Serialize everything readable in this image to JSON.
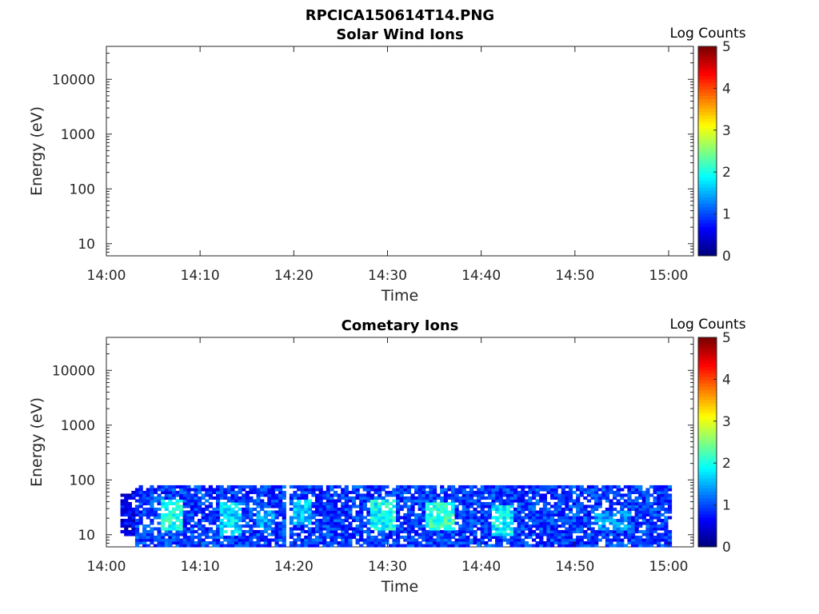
{
  "figure": {
    "title": "RPCICA150614T14.PNG"
  },
  "chart_data": [
    {
      "type": "heatmap",
      "title": "Solar Wind Ions",
      "xlabel": "Time",
      "ylabel": "Energy (eV)",
      "x_ticks": [
        "14:00",
        "14:10",
        "14:20",
        "14:30",
        "14:40",
        "14:50",
        "15:00"
      ],
      "x_range_minutes": [
        0,
        62
      ],
      "y_scale": "log",
      "y_ticks": [
        10,
        100,
        1000,
        10000
      ],
      "y_range": [
        6,
        40000
      ],
      "colorbar": {
        "label": "Log Counts",
        "ticks": [
          0,
          1,
          2,
          3,
          4,
          5
        ],
        "range": [
          0,
          5
        ],
        "colormap": "jet"
      },
      "data": "no counts in range",
      "regions": []
    },
    {
      "type": "heatmap",
      "title": "Cometary Ions",
      "xlabel": "Time",
      "ylabel": "Energy (eV)",
      "x_ticks": [
        "14:00",
        "14:10",
        "14:20",
        "14:30",
        "14:40",
        "14:50",
        "15:00"
      ],
      "x_range_minutes": [
        0,
        62
      ],
      "y_scale": "log",
      "y_ticks": [
        10,
        100,
        1000,
        10000
      ],
      "y_range": [
        6,
        40000
      ],
      "colorbar": {
        "label": "Log Counts",
        "ticks": [
          0,
          1,
          2,
          3,
          4,
          5
        ],
        "range": [
          0,
          5
        ],
        "colormap": "jet"
      },
      "data_extent": {
        "time_minutes": [
          1.5,
          60.3
        ],
        "energy_ev": [
          6,
          80
        ]
      },
      "regions": [
        {
          "t0": 1.5,
          "t1": 3.0,
          "e0": 10,
          "e1": 65,
          "level": 0.5
        },
        {
          "t0": 3.0,
          "t1": 19.0,
          "e0": 6,
          "e1": 80,
          "level": 0.9
        },
        {
          "t0": 6.0,
          "t1": 8.0,
          "e0": 12,
          "e1": 45,
          "level": 2.0
        },
        {
          "t0": 12.0,
          "t1": 14.5,
          "e0": 10,
          "e1": 40,
          "level": 1.7
        },
        {
          "t0": 16.0,
          "t1": 18.0,
          "e0": 12,
          "e1": 30,
          "level": 1.4
        },
        {
          "t0": 19.5,
          "t1": 60.3,
          "e0": 6,
          "e1": 80,
          "level": 0.9
        },
        {
          "t0": 20.0,
          "t1": 22.0,
          "e0": 15,
          "e1": 45,
          "level": 1.6
        },
        {
          "t0": 28.0,
          "t1": 31.0,
          "e0": 12,
          "e1": 45,
          "level": 1.9
        },
        {
          "t0": 34.0,
          "t1": 37.0,
          "e0": 12,
          "e1": 40,
          "level": 2.1
        },
        {
          "t0": 41.0,
          "t1": 43.5,
          "e0": 10,
          "e1": 35,
          "level": 1.8
        },
        {
          "t0": 52.0,
          "t1": 56.0,
          "e0": 12,
          "e1": 28,
          "level": 1.3
        }
      ]
    }
  ]
}
